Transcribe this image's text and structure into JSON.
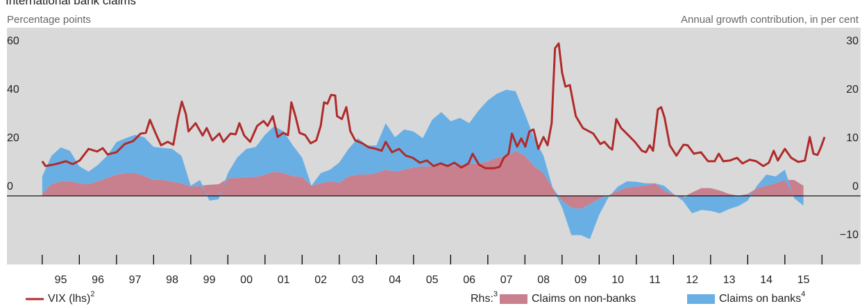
{
  "chart_data": {
    "type": "line",
    "title": "International bank claims",
    "ylabel": "Percentage points",
    "y2label": "Annual growth contribution, in per cent",
    "xlim": [
      1994.05,
      2017.04
    ],
    "xticks": [
      {
        "value": 1995.5,
        "label": "95"
      },
      {
        "value": 1996.5,
        "label": "96"
      },
      {
        "value": 1997.5,
        "label": "97"
      },
      {
        "value": 1998.5,
        "label": "98"
      },
      {
        "value": 1999.5,
        "label": "99"
      },
      {
        "value": 2000.5,
        "label": "00"
      },
      {
        "value": 2001.5,
        "label": "01"
      },
      {
        "value": 2002.5,
        "label": "02"
      },
      {
        "value": 2003.5,
        "label": "03"
      },
      {
        "value": 2004.5,
        "label": "04"
      },
      {
        "value": 2005.5,
        "label": "05"
      },
      {
        "value": 2006.5,
        "label": "06"
      },
      {
        "value": 2007.5,
        "label": "07"
      },
      {
        "value": 2008.5,
        "label": "08"
      },
      {
        "value": 2009.5,
        "label": "09"
      },
      {
        "value": 2010.5,
        "label": "10"
      },
      {
        "value": 2011.5,
        "label": "11"
      },
      {
        "value": 2012.5,
        "label": "12"
      },
      {
        "value": 2013.5,
        "label": "13"
      },
      {
        "value": 2014.5,
        "label": "14"
      },
      {
        "value": 2015.5,
        "label": "15"
      }
    ],
    "xminor_ticks": [
      1995,
      1996,
      1997,
      1998,
      1999,
      2000,
      2001,
      2002,
      2003,
      2004,
      2005,
      2006,
      2007,
      2008,
      2009,
      2010,
      2011,
      2012,
      2013,
      2014,
      2015,
      2016
    ],
    "ylim": [
      -28.3,
      69.4
    ],
    "yticks": [
      0,
      20,
      40,
      60
    ],
    "y2lim": [
      -14.15,
      34.7
    ],
    "y2ticks": [
      {
        "value": -10,
        "label": "−10"
      },
      0,
      10,
      20,
      30
    ],
    "grid": false,
    "stacked": true,
    "legend_rhs_label": "Rhs:",
    "legend_rhs_note": "3",
    "series": [
      {
        "name": "VIX (lhs)",
        "note": "2",
        "type": "line",
        "axis": "y",
        "color": "#b02a2a",
        "x": [
          1995.0,
          1995.09,
          1995.36,
          1995.64,
          1995.82,
          1996.01,
          1996.25,
          1996.48,
          1996.63,
          1996.76,
          1997.0,
          1997.22,
          1997.45,
          1997.65,
          1997.79,
          1997.9,
          1998.05,
          1998.2,
          1998.38,
          1998.53,
          1998.66,
          1998.76,
          1998.87,
          1998.94,
          1999.13,
          1999.32,
          1999.43,
          1999.58,
          1999.77,
          1999.88,
          2000.07,
          2000.21,
          2000.31,
          2000.44,
          2000.6,
          2000.79,
          2000.96,
          2001.07,
          2001.21,
          2001.34,
          2001.49,
          2001.62,
          2001.71,
          2001.82,
          2001.93,
          2002.08,
          2002.23,
          2002.38,
          2002.5,
          2002.59,
          2002.68,
          2002.78,
          2002.89,
          2002.94,
          2003.07,
          2003.19,
          2003.3,
          2003.43,
          2003.62,
          2003.8,
          2003.99,
          2004.14,
          2004.25,
          2004.42,
          2004.61,
          2004.79,
          2004.98,
          2005.17,
          2005.36,
          2005.54,
          2005.73,
          2005.92,
          2006.1,
          2006.29,
          2006.48,
          2006.59,
          2006.76,
          2006.94,
          2007.17,
          2007.32,
          2007.43,
          2007.56,
          2007.65,
          2007.79,
          2007.9,
          2008.01,
          2008.12,
          2008.23,
          2008.36,
          2008.5,
          2008.61,
          2008.72,
          2008.81,
          2008.91,
          2009.0,
          2009.09,
          2009.21,
          2009.37,
          2009.56,
          2009.84,
          2010.03,
          2010.14,
          2010.27,
          2010.35,
          2010.46,
          2010.59,
          2010.78,
          2010.96,
          2011.15,
          2011.26,
          2011.36,
          2011.45,
          2011.58,
          2011.67,
          2011.76,
          2011.9,
          2012.08,
          2012.27,
          2012.38,
          2012.55,
          2012.74,
          2012.93,
          2013.11,
          2013.22,
          2013.34,
          2013.52,
          2013.71,
          2013.86,
          2014.05,
          2014.23,
          2014.42,
          2014.57,
          2014.7,
          2014.81,
          2015.0,
          2015.17,
          2015.36,
          2015.54,
          2015.67,
          2015.77,
          2015.88,
          2015.97,
          2016.07
        ],
        "values": [
          14.3,
          12.3,
          13.1,
          14.3,
          13.1,
          14.6,
          19.4,
          18.3,
          19.7,
          17.1,
          18.0,
          21.4,
          22.6,
          25.7,
          26.0,
          31.4,
          26.0,
          20.9,
          22.3,
          21.1,
          32.3,
          38.9,
          33.7,
          26.6,
          30.0,
          24.9,
          28.0,
          22.9,
          25.7,
          22.3,
          25.7,
          25.4,
          30.0,
          24.9,
          22.3,
          28.9,
          30.9,
          28.9,
          32.9,
          24.3,
          26.0,
          25.1,
          38.6,
          32.9,
          26.0,
          25.1,
          21.7,
          22.9,
          28.9,
          38.6,
          38.0,
          41.7,
          41.4,
          32.9,
          31.7,
          36.6,
          26.6,
          22.9,
          21.7,
          20.0,
          19.4,
          18.6,
          22.3,
          18.0,
          19.4,
          16.6,
          15.7,
          13.7,
          14.6,
          12.3,
          13.4,
          12.3,
          13.7,
          11.7,
          13.4,
          17.4,
          12.9,
          11.4,
          11.4,
          12.0,
          15.7,
          17.4,
          25.7,
          20.3,
          23.7,
          20.3,
          26.6,
          27.4,
          19.4,
          24.3,
          20.9,
          30.0,
          60.9,
          62.9,
          50.9,
          45.1,
          45.7,
          32.9,
          28.0,
          25.7,
          21.4,
          22.3,
          20.0,
          19.1,
          31.7,
          28.0,
          25.1,
          22.3,
          18.6,
          18.0,
          20.9,
          18.6,
          35.7,
          36.6,
          32.3,
          20.9,
          16.6,
          21.1,
          20.9,
          17.4,
          18.0,
          14.3,
          14.3,
          17.4,
          14.3,
          14.6,
          15.7,
          13.4,
          14.9,
          14.3,
          12.3,
          13.7,
          18.6,
          14.6,
          19.4,
          15.7,
          14.0,
          14.6,
          24.3,
          17.4,
          16.9,
          20.0,
          24.3
        ]
      },
      {
        "name": "Claims on non-banks",
        "type": "area",
        "axis": "y2",
        "color": "#c9808e",
        "x": [
          1995.0,
          1995.25,
          1995.5,
          1995.75,
          1996.0,
          1996.25,
          1996.5,
          1996.75,
          1997.0,
          1997.25,
          1997.5,
          1997.75,
          1998.0,
          1998.25,
          1998.5,
          1998.75,
          1999.0,
          1999.25,
          1999.5,
          1999.75,
          2000.0,
          2000.25,
          2000.5,
          2000.75,
          2001.0,
          2001.25,
          2001.5,
          2001.75,
          2002.0,
          2002.25,
          2002.5,
          2002.75,
          2003.0,
          2003.25,
          2003.5,
          2003.75,
          2004.0,
          2004.25,
          2004.5,
          2004.75,
          2005.0,
          2005.25,
          2005.5,
          2005.75,
          2006.0,
          2006.25,
          2006.5,
          2006.75,
          2007.0,
          2007.25,
          2007.5,
          2007.75,
          2008.0,
          2008.25,
          2008.5,
          2008.75,
          2009.0,
          2009.25,
          2009.5,
          2009.75,
          2010.0,
          2010.25,
          2010.5,
          2010.75,
          2011.0,
          2011.25,
          2011.5,
          2011.75,
          2012.0,
          2012.25,
          2012.5,
          2012.75,
          2013.0,
          2013.25,
          2013.5,
          2013.75,
          2014.0,
          2014.25,
          2014.5,
          2014.75,
          2015.0,
          2015.25,
          2015.5
        ],
        "values": [
          0.4,
          2.4,
          3.0,
          3.0,
          2.6,
          2.4,
          3.0,
          3.7,
          4.4,
          4.7,
          4.7,
          4.1,
          3.3,
          3.3,
          2.9,
          2.6,
          1.9,
          2.1,
          2.3,
          2.4,
          3.6,
          3.7,
          3.9,
          3.9,
          4.4,
          5.0,
          4.7,
          4.1,
          3.9,
          2.1,
          2.6,
          3.0,
          2.7,
          4.0,
          4.4,
          4.4,
          4.7,
          5.4,
          5.0,
          5.4,
          5.9,
          6.1,
          6.1,
          6.4,
          6.1,
          6.4,
          6.6,
          6.7,
          7.1,
          7.9,
          8.1,
          9.3,
          8.3,
          6.1,
          4.7,
          1.6,
          -1.0,
          -2.4,
          -2.7,
          -1.7,
          -0.6,
          0.1,
          1.0,
          1.7,
          1.9,
          2.1,
          2.6,
          1.1,
          0.3,
          -0.3,
          0.7,
          1.6,
          1.6,
          1.1,
          0.4,
          0,
          0.4,
          1.6,
          2.1,
          2.6,
          3.3,
          3.3,
          2.1
        ]
      },
      {
        "name": "Claims on banks",
        "note": "4",
        "type": "area",
        "axis": "y2",
        "color": "#6aafe4",
        "x": [
          1995.0,
          1995.25,
          1995.5,
          1995.75,
          1996.0,
          1996.25,
          1996.5,
          1996.75,
          1997.0,
          1997.25,
          1997.5,
          1997.75,
          1998.0,
          1998.25,
          1998.5,
          1998.75,
          1999.0,
          1999.25,
          1999.5,
          1999.75,
          2000.0,
          2000.25,
          2000.5,
          2000.75,
          2001.0,
          2001.25,
          2001.5,
          2001.75,
          2002.0,
          2002.25,
          2002.5,
          2002.75,
          2003.0,
          2003.25,
          2003.5,
          2003.75,
          2004.0,
          2004.25,
          2004.5,
          2004.75,
          2005.0,
          2005.25,
          2005.5,
          2005.75,
          2006.0,
          2006.25,
          2006.5,
          2006.75,
          2007.0,
          2007.25,
          2007.5,
          2007.75,
          2008.0,
          2008.25,
          2008.5,
          2008.75,
          2009.0,
          2009.25,
          2009.5,
          2009.75,
          2010.0,
          2010.25,
          2010.5,
          2010.75,
          2011.0,
          2011.25,
          2011.5,
          2011.75,
          2012.0,
          2012.25,
          2012.5,
          2012.75,
          2013.0,
          2013.25,
          2013.5,
          2013.75,
          2014.0,
          2014.25,
          2014.5,
          2014.75,
          2015.0,
          2015.25,
          2015.5
        ],
        "values": [
          3.6,
          5.9,
          7.0,
          6.3,
          3.5,
          2.6,
          3.4,
          4.6,
          6.7,
          7.2,
          7.9,
          8.0,
          6.8,
          6.6,
          6.8,
          5.7,
          0.2,
          1.2,
          -1.0,
          -0.7,
          1.1,
          4.2,
          5.8,
          6.2,
          8.2,
          9.4,
          8.6,
          6.3,
          4.0,
          0,
          2.1,
          2.4,
          4.2,
          5.7,
          7.5,
          6.0,
          5.7,
          9.6,
          7.1,
          8.3,
          7.4,
          5.8,
          9.6,
          10.9,
          9.3,
          9.7,
          8.4,
          10.9,
          12.6,
          13.2,
          13.8,
          12.3,
          8.6,
          5.8,
          3.6,
          0,
          -1.4,
          -5.7,
          -5.4,
          -7.2,
          -3.3,
          -0.3,
          0.9,
          1.3,
          1.0,
          0.5,
          0,
          1.0,
          0.1,
          -0.7,
          -3.6,
          -2.9,
          -3.1,
          -3.6,
          -2.7,
          -2.1,
          -1.0,
          0.5,
          2.3,
          1.4,
          2.1,
          -0.5,
          -2.0
        ]
      }
    ]
  }
}
